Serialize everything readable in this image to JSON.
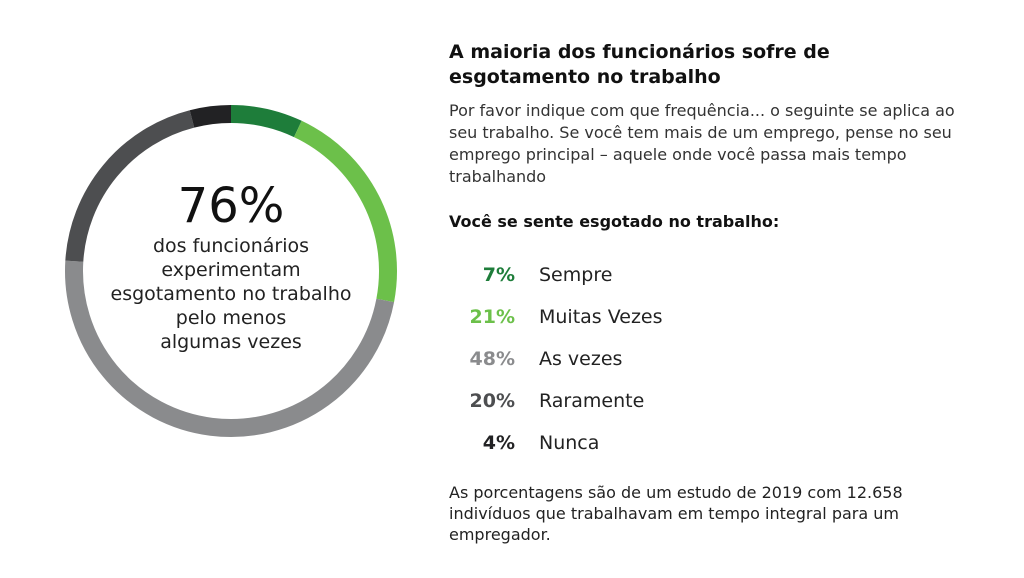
{
  "chart_data": {
    "type": "pie",
    "variant": "donut",
    "title": "A maioria dos funcionários sofre de esgotamento no trabalho",
    "question": "Você se sente esgotado no trabalho:",
    "center_value": "76%",
    "center_text": [
      "dos funcionários",
      "experimentam",
      "esgotamento no trabalho",
      "pelo menos",
      "algumas vezes"
    ],
    "categories": [
      "Sempre",
      "Muitas Vezes",
      "As vezes",
      "Raramente",
      "Nunca"
    ],
    "values": [
      7,
      21,
      48,
      20,
      4
    ],
    "value_labels": [
      "7%",
      "21%",
      "48%",
      "20%",
      "4%"
    ],
    "colors": [
      "#1e7d3a",
      "#6cc04a",
      "#8a8b8d",
      "#4d4e50",
      "#222224"
    ]
  },
  "description": "Por favor indique com que frequência... o seguinte se aplica ao seu trabalho. Se você tem mais de um emprego, pense no seu emprego principal – aquele onde você passa mais tempo trabalhando",
  "footnote": "As porcentagens são de um estudo de 2019 com 12.658 indivíduos que trabalhavam em tempo integral para um empregador."
}
